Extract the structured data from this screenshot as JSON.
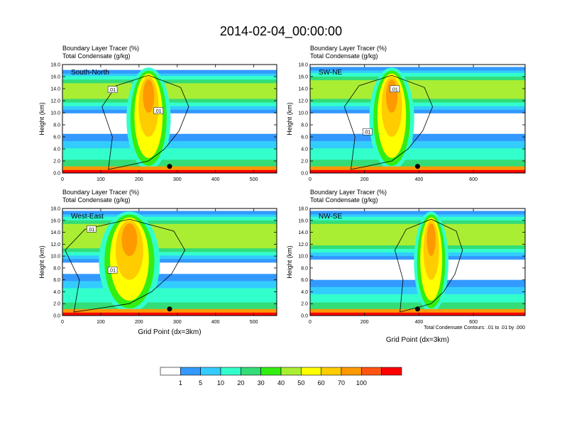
{
  "chart_data": [
    {
      "type": "heatmap",
      "panel": "south-north",
      "title_line1": "Boundary Layer Tracer   (%)",
      "title_line2": "Total Condensate   (g/kg)",
      "section_label": "South-North",
      "xlabel": "",
      "ylabel": "Height (km)",
      "xlim": [
        0,
        560
      ],
      "ylim": [
        0,
        18
      ],
      "x_ticks": [
        0,
        100,
        200,
        300,
        400,
        500
      ],
      "x_tick_labels": [
        "0",
        "100",
        "200",
        "300",
        "400",
        "500"
      ],
      "y_ticks": [
        0,
        2,
        4,
        6,
        8,
        10,
        12,
        14,
        16,
        18
      ],
      "y_tick_labels": [
        "0.0",
        "2.0",
        "4.0",
        "6.0",
        "8.0",
        "10.0",
        "12.0",
        "14.0",
        "16.0",
        "18.0"
      ],
      "contour_labels": [
        {
          "x": 130,
          "y": 13.8,
          "text": ".01"
        },
        {
          "x": 250,
          "y": 10.3,
          "text": ".01"
        }
      ],
      "marker": {
        "x": 280,
        "y": 1.1
      },
      "cloud_x": [
        120,
        330
      ],
      "upper_band": [
        10.5,
        16.5
      ],
      "lower_band_top": 6.5
    },
    {
      "type": "heatmap",
      "panel": "sw-ne",
      "title_line1": "Boundary Layer Tracer   (%)",
      "title_line2": "Total Condensate   (g/kg)",
      "section_label": "SW-NE",
      "xlabel": "",
      "ylabel": "Height (km)",
      "xlim": [
        0,
        790
      ],
      "ylim": [
        0,
        18
      ],
      "x_ticks": [
        0,
        200,
        400,
        600
      ],
      "x_tick_labels": [
        "0",
        "200",
        "400",
        "600"
      ],
      "y_ticks": [
        0,
        2,
        4,
        6,
        8,
        10,
        12,
        14,
        16,
        18
      ],
      "y_tick_labels": [
        "0.0",
        "2.0",
        "4.0",
        "6.0",
        "8.0",
        "10.0",
        "12.0",
        "14.0",
        "16.0",
        "18.0"
      ],
      "contour_labels": [
        {
          "x": 210,
          "y": 6.8,
          "text": ".01"
        },
        {
          "x": 310,
          "y": 13.9,
          "text": ".01"
        }
      ],
      "marker": {
        "x": 395,
        "y": 1.1
      },
      "cloud_x": [
        150,
        450
      ],
      "upper_band": [
        10.5,
        17
      ],
      "lower_band_top": 6.5
    },
    {
      "type": "heatmap",
      "panel": "west-east",
      "title_line1": "Boundary Layer Tracer   (%)",
      "title_line2": "Total Condensate   (g/kg)",
      "section_label": "West-East",
      "xlabel": "Grid Point (dx=3km)",
      "ylabel": "Height (km)",
      "xlim": [
        0,
        560
      ],
      "ylim": [
        0,
        18
      ],
      "x_ticks": [
        0,
        100,
        200,
        300,
        400,
        500
      ],
      "x_tick_labels": [
        "0",
        "100",
        "200",
        "300",
        "400",
        "500"
      ],
      "y_ticks": [
        0,
        2,
        4,
        6,
        8,
        10,
        12,
        14,
        16,
        18
      ],
      "y_tick_labels": [
        "0.0",
        "2.0",
        "4.0",
        "6.0",
        "8.0",
        "10.0",
        "12.0",
        "14.0",
        "16.0",
        "18.0"
      ],
      "contour_labels": [
        {
          "x": 75,
          "y": 14.5,
          "text": ".01"
        },
        {
          "x": 130,
          "y": 7.6,
          "text": ".01"
        }
      ],
      "marker": {
        "x": 280,
        "y": 1.1
      },
      "cloud_x": [
        30,
        320
      ],
      "upper_band": [
        9.5,
        17
      ],
      "lower_band_top": 7
    },
    {
      "type": "heatmap",
      "panel": "nw-se",
      "title_line1": "Boundary Layer Tracer   (%)",
      "title_line2": "Total Condensate   (g/kg)",
      "section_label": "NW-SE",
      "xlabel": "Grid Point (dx=3km)",
      "ylabel": "Height (km)",
      "xlim": [
        0,
        790
      ],
      "ylim": [
        0,
        18
      ],
      "x_ticks": [
        0,
        200,
        400,
        600
      ],
      "x_tick_labels": [
        "0",
        "200",
        "400",
        "600"
      ],
      "y_ticks": [
        0,
        2,
        4,
        6,
        8,
        10,
        12,
        14,
        16,
        18
      ],
      "y_tick_labels": [
        "0.0",
        "2.0",
        "4.0",
        "6.0",
        "8.0",
        "10.0",
        "12.0",
        "14.0",
        "16.0",
        "18.0"
      ],
      "contour_labels": [],
      "marker": {
        "x": 395,
        "y": 1.1
      },
      "cloud_x": [
        330,
        560
      ],
      "upper_band": [
        10,
        17
      ],
      "lower_band_top": 6,
      "footnote": "Total Condensate Contours: .01 to .01 by .000"
    }
  ],
  "figure": {
    "title": "2014-02-04_00:00:00"
  },
  "colorbar": {
    "colors": [
      "#ffffff",
      "#3399ff",
      "#33ccff",
      "#33ffcc",
      "#33dd77",
      "#33ee11",
      "#aaee33",
      "#ffff00",
      "#ffcc00",
      "#ff9900",
      "#ff5511",
      "#ff0000"
    ],
    "labels": [
      "1",
      "5",
      "10",
      "20",
      "30",
      "40",
      "50",
      "60",
      "70",
      "100"
    ]
  }
}
